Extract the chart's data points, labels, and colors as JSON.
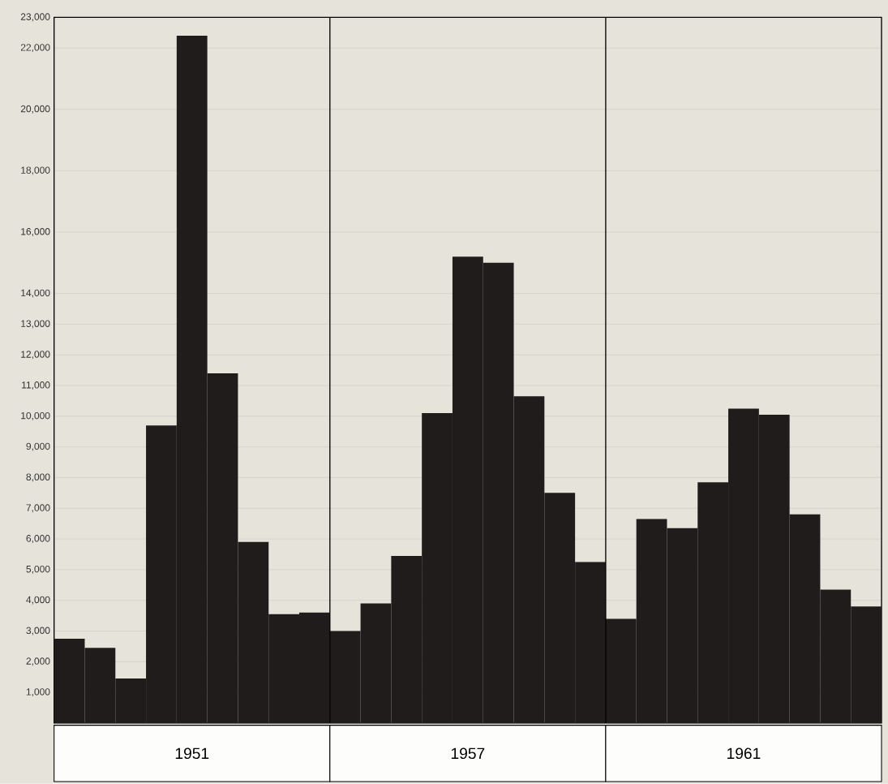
{
  "chart_data": {
    "type": "bar",
    "annotations": [
      "1951",
      "1957",
      "1961"
    ],
    "categories": [
      null,
      null,
      null,
      null,
      null,
      null,
      null,
      null,
      null,
      null,
      null,
      null,
      null,
      null,
      null,
      null,
      null,
      null,
      null,
      null,
      null,
      null,
      null,
      null,
      null,
      null,
      null
    ],
    "values": [
      2750,
      2450,
      1450,
      9700,
      22400,
      11400,
      5900,
      3550,
      3600,
      3000,
      3900,
      5450,
      10100,
      15200,
      15000,
      10650,
      7500,
      5250,
      3400,
      6650,
      6350,
      7850,
      10250,
      10050,
      6800,
      4350,
      3800
    ],
    "color": "#1f1c1b",
    "ylim": [
      0,
      23000
    ],
    "yticks": [
      {
        "value": 1000,
        "label": "1,000"
      },
      {
        "value": 2000,
        "label": "2,000"
      },
      {
        "value": 3000,
        "label": "3,000"
      },
      {
        "value": 4000,
        "label": "4,000"
      },
      {
        "value": 5000,
        "label": "5,000"
      },
      {
        "value": 6000,
        "label": "6,000"
      },
      {
        "value": 7000,
        "label": "7,000"
      },
      {
        "value": 8000,
        "label": "8,000"
      },
      {
        "value": 9000,
        "label": "9,000"
      },
      {
        "value": 10000,
        "label": "10,000"
      },
      {
        "value": 11000,
        "label": "11,000"
      },
      {
        "value": 12000,
        "label": "12,000"
      },
      {
        "value": 13000,
        "label": "13,000"
      },
      {
        "value": 14000,
        "label": "14,000"
      },
      {
        "value": 16000,
        "label": "16,000"
      },
      {
        "value": 18000,
        "label": "18,000"
      },
      {
        "value": 20000,
        "label": "20,000"
      },
      {
        "value": 22000,
        "label": "22,000"
      },
      {
        "value": 23000,
        "label": "23,000"
      }
    ],
    "grid": "y"
  }
}
